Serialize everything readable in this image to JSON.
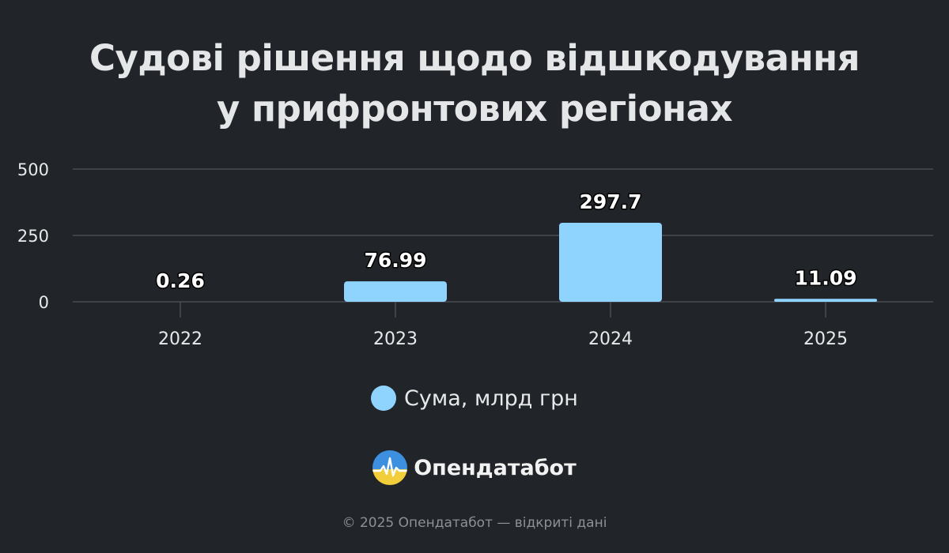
{
  "chart_data": {
    "type": "bar",
    "title_lines": [
      "Судові рішення щодо відшкодування",
      "у прифронтових регіонах"
    ],
    "categories": [
      "2022",
      "2023",
      "2024",
      "2025"
    ],
    "series": [
      {
        "name": "Сума, млрд грн",
        "values": [
          0.26,
          76.99,
          297.7,
          11.09
        ],
        "data_labels": [
          "0.26",
          "76.99",
          "297.7",
          "11.09"
        ],
        "color": "#8fd3ff"
      }
    ],
    "yticks": [
      "0",
      "250",
      "500"
    ],
    "ylim": [
      0,
      500
    ],
    "grid": true,
    "legend_position": "bottom-center"
  },
  "colors": {
    "background": "#212428",
    "gridline": "#4a4d52",
    "bar": "#8fd3ff",
    "text": "#e8e9ea"
  },
  "brand": {
    "name": "Опендатабот",
    "logo_icon": "opendatabot-logo-icon"
  },
  "footer": {
    "text": "© 2025 Опендатабот — відкриті дані"
  }
}
